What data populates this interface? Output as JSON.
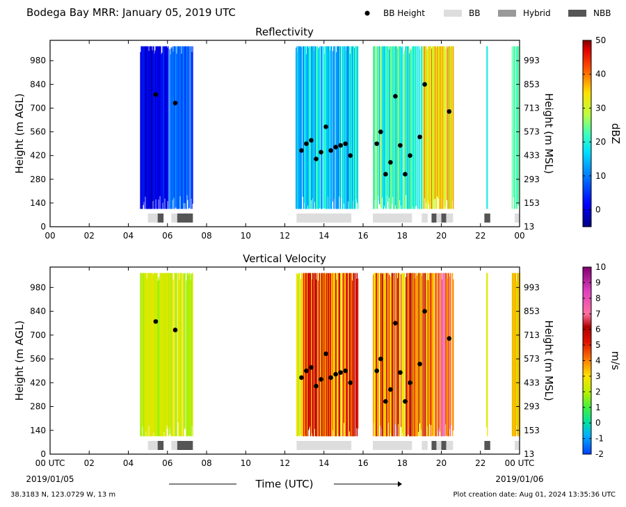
{
  "header": {
    "title": "Bodega Bay MRR:  January 05, 2019 UTC",
    "legend": [
      {
        "label": "BB Height",
        "type": "dot",
        "color": "#000000"
      },
      {
        "label": "BB",
        "type": "box",
        "color": "#dddddd"
      },
      {
        "label": "Hybrid",
        "type": "box",
        "color": "#999999"
      },
      {
        "label": "NBB",
        "type": "box",
        "color": "#555555"
      }
    ]
  },
  "x_ticks": [
    "00",
    "02",
    "04",
    "06",
    "08",
    "10",
    "12",
    "14",
    "16",
    "18",
    "20",
    "22",
    "00"
  ],
  "x_ticks_bottom": [
    "00 UTC",
    "02",
    "04",
    "06",
    "08",
    "10",
    "12",
    "14",
    "16",
    "18",
    "20",
    "22",
    "00 UTC"
  ],
  "date_start": "2019/01/05",
  "date_end": "2019/01/06",
  "x_axis_label": "Time (UTC)",
  "location": "38.3183 N, 123.0729 W, 13 m",
  "creation": "Plot creation date: Aug 01, 2024 13:35:36 UTC",
  "panels": {
    "reflectivity": {
      "title": "Reflectivity",
      "ylabel_left": "Height (m AGL)",
      "ylabel_right": "Height (m MSL)",
      "left_ticks": [
        "0",
        "140",
        "280",
        "420",
        "560",
        "700",
        "840",
        "980"
      ],
      "right_ticks": [
        "13",
        "153",
        "293",
        "433",
        "573",
        "713",
        "853",
        "993"
      ],
      "cbar_label": "dBZ",
      "cbar_ticks": [
        "0",
        "10",
        "20",
        "30",
        "40",
        "50"
      ]
    },
    "velocity": {
      "title": "Vertical Velocity",
      "ylabel_left": "Height (m AGL)",
      "ylabel_right": "Height (m MSL)",
      "left_ticks": [
        "0",
        "140",
        "280",
        "420",
        "560",
        "700",
        "840",
        "980"
      ],
      "right_ticks": [
        "13",
        "153",
        "293",
        "433",
        "573",
        "713",
        "853",
        "993"
      ],
      "cbar_label": "m/s",
      "cbar_ticks": [
        "-2",
        "-1",
        "0",
        "1",
        "2",
        "3",
        "4",
        "5",
        "6",
        "7",
        "8",
        "9",
        "10"
      ]
    }
  },
  "chart_data": {
    "type": "heatmap",
    "x_unit": "hours UTC",
    "xlim": [
      0,
      24
    ],
    "ylim": [
      0,
      1100
    ],
    "bb_height_points": [
      {
        "t": 5.4,
        "h": 780
      },
      {
        "t": 6.4,
        "h": 730
      },
      {
        "t": 12.85,
        "h": 450
      },
      {
        "t": 13.1,
        "h": 490
      },
      {
        "t": 13.35,
        "h": 510
      },
      {
        "t": 13.6,
        "h": 400
      },
      {
        "t": 13.85,
        "h": 440
      },
      {
        "t": 14.1,
        "h": 590
      },
      {
        "t": 14.35,
        "h": 450
      },
      {
        "t": 14.6,
        "h": 470
      },
      {
        "t": 14.85,
        "h": 480
      },
      {
        "t": 15.1,
        "h": 490
      },
      {
        "t": 15.35,
        "h": 420
      },
      {
        "t": 16.7,
        "h": 490
      },
      {
        "t": 16.9,
        "h": 560
      },
      {
        "t": 17.15,
        "h": 310
      },
      {
        "t": 17.4,
        "h": 380
      },
      {
        "t": 17.65,
        "h": 770
      },
      {
        "t": 17.9,
        "h": 480
      },
      {
        "t": 18.15,
        "h": 310
      },
      {
        "t": 18.4,
        "h": 420
      },
      {
        "t": 18.9,
        "h": 530
      },
      {
        "t": 19.15,
        "h": 840
      },
      {
        "t": 20.4,
        "h": 680
      }
    ],
    "bb_type_segments": [
      {
        "start": 5.0,
        "end": 5.5,
        "type": "BB"
      },
      {
        "start": 5.5,
        "end": 5.8,
        "type": "NBB"
      },
      {
        "start": 6.2,
        "end": 6.5,
        "type": "BB"
      },
      {
        "start": 6.5,
        "end": 7.3,
        "type": "NBB"
      },
      {
        "start": 12.6,
        "end": 15.4,
        "type": "BB"
      },
      {
        "start": 16.5,
        "end": 18.5,
        "type": "BB"
      },
      {
        "start": 19.0,
        "end": 19.3,
        "type": "BB"
      },
      {
        "start": 19.5,
        "end": 19.75,
        "type": "NBB"
      },
      {
        "start": 19.75,
        "end": 20.0,
        "type": "BB"
      },
      {
        "start": 20.0,
        "end": 20.25,
        "type": "NBB"
      },
      {
        "start": 20.25,
        "end": 20.6,
        "type": "BB"
      },
      {
        "start": 22.2,
        "end": 22.5,
        "type": "NBB"
      },
      {
        "start": 23.75,
        "end": 24.0,
        "type": "BB"
      }
    ],
    "precip_periods": [
      {
        "start": 4.6,
        "end": 7.3
      },
      {
        "start": 12.55,
        "end": 15.75
      },
      {
        "start": 16.5,
        "end": 20.6
      },
      {
        "start": 22.3,
        "end": 22.35
      },
      {
        "start": 23.6,
        "end": 24.0
      }
    ],
    "reflectivity_scale": {
      "min": -5,
      "max": 50,
      "unit": "dBZ"
    },
    "velocity_scale": {
      "min": -2,
      "max": 10,
      "unit": "m/s"
    }
  }
}
